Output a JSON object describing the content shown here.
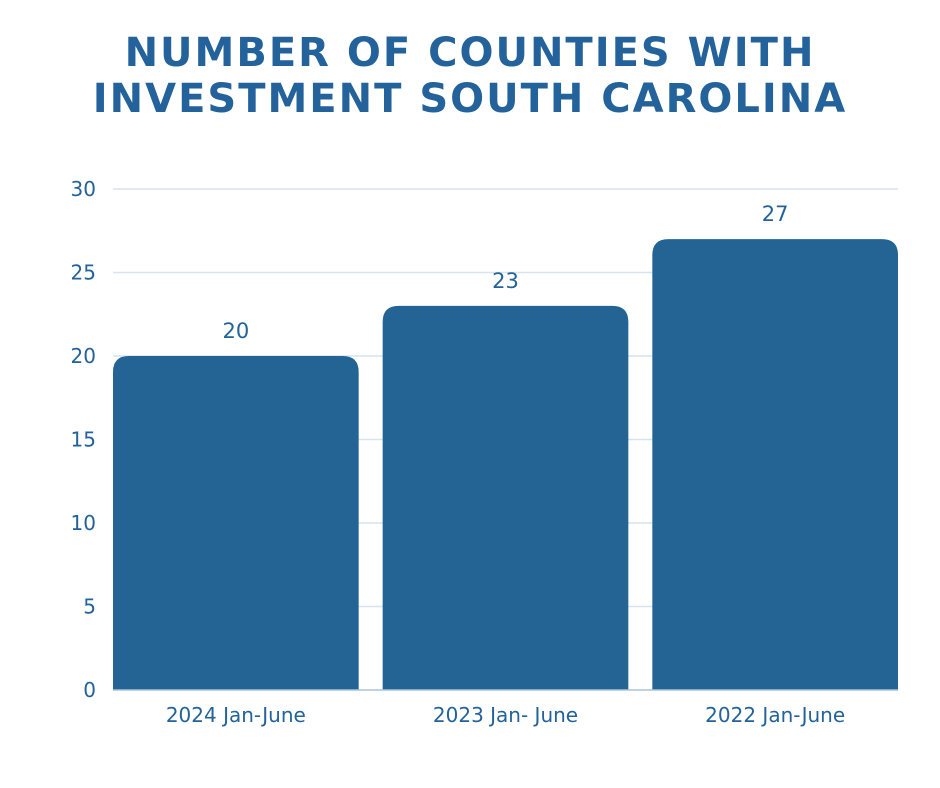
{
  "chart_data": {
    "type": "bar",
    "title_lines": [
      "NUMBER OF COUNTIES WITH",
      "INVESTMENT SOUTH CAROLINA"
    ],
    "categories": [
      "2024 Jan-June",
      "2023 Jan- June",
      "2022 Jan-June"
    ],
    "values": [
      20,
      23,
      27
    ],
    "data_labels": [
      "20",
      "23",
      "27"
    ],
    "ylim": [
      0,
      30
    ],
    "yticks": [
      0,
      5,
      10,
      15,
      20,
      25,
      30
    ],
    "grid": true,
    "xlabel": "",
    "ylabel": "",
    "colors": {
      "bar": "#236495",
      "text": "#23629a",
      "grid": "#d6e4ef"
    }
  }
}
